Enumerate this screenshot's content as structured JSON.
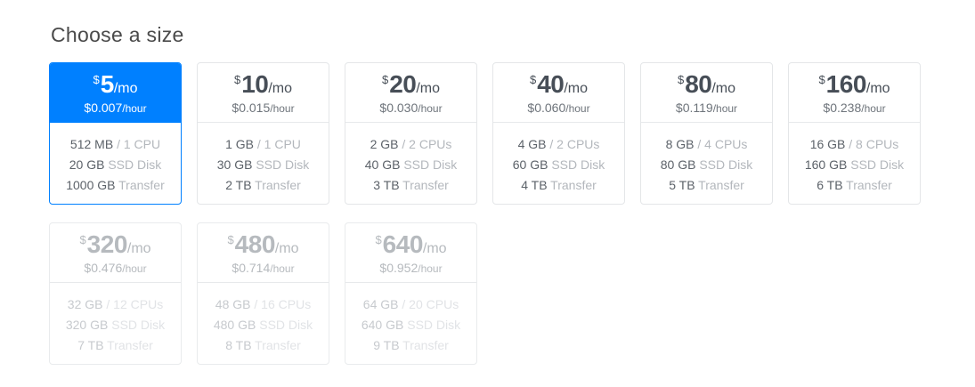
{
  "page": {
    "title": "Choose a size"
  },
  "colors": {
    "accent_blue": "#0080ff",
    "card_border": "#e4e6e8",
    "price_text": "#474e57",
    "spec_value_text": "#5c6269",
    "spec_label_text": "#b3b7bc",
    "disabled_text": "#b6babe"
  },
  "plans": [
    {
      "currency": "$",
      "amount": "5",
      "period": "/mo",
      "hourly": "$0.007",
      "hourly_period": "/hour",
      "state": "selected",
      "specs": [
        {
          "value": "512 MB",
          "label": "/ 1 CPU"
        },
        {
          "value": "20 GB",
          "label": "SSD Disk"
        },
        {
          "value": "1000 GB",
          "label": "Transfer"
        }
      ]
    },
    {
      "currency": "$",
      "amount": "10",
      "period": "/mo",
      "hourly": "$0.015",
      "hourly_period": "/hour",
      "state": "available",
      "specs": [
        {
          "value": "1 GB",
          "label": "/ 1 CPU"
        },
        {
          "value": "30 GB",
          "label": "SSD Disk"
        },
        {
          "value": "2 TB",
          "label": "Transfer"
        }
      ]
    },
    {
      "currency": "$",
      "amount": "20",
      "period": "/mo",
      "hourly": "$0.030",
      "hourly_period": "/hour",
      "state": "available",
      "specs": [
        {
          "value": "2 GB",
          "label": "/ 2 CPUs"
        },
        {
          "value": "40 GB",
          "label": "SSD Disk"
        },
        {
          "value": "3 TB",
          "label": "Transfer"
        }
      ]
    },
    {
      "currency": "$",
      "amount": "40",
      "period": "/mo",
      "hourly": "$0.060",
      "hourly_period": "/hour",
      "state": "available",
      "specs": [
        {
          "value": "4 GB",
          "label": "/ 2 CPUs"
        },
        {
          "value": "60 GB",
          "label": "SSD Disk"
        },
        {
          "value": "4 TB",
          "label": "Transfer"
        }
      ]
    },
    {
      "currency": "$",
      "amount": "80",
      "period": "/mo",
      "hourly": "$0.119",
      "hourly_period": "/hour",
      "state": "available",
      "specs": [
        {
          "value": "8 GB",
          "label": "/ 4 CPUs"
        },
        {
          "value": "80 GB",
          "label": "SSD Disk"
        },
        {
          "value": "5 TB",
          "label": "Transfer"
        }
      ]
    },
    {
      "currency": "$",
      "amount": "160",
      "period": "/mo",
      "hourly": "$0.238",
      "hourly_period": "/hour",
      "state": "available",
      "specs": [
        {
          "value": "16 GB",
          "label": "/ 8 CPUs"
        },
        {
          "value": "160 GB",
          "label": "SSD Disk"
        },
        {
          "value": "6 TB",
          "label": "Transfer"
        }
      ]
    },
    {
      "currency": "$",
      "amount": "320",
      "period": "/mo",
      "hourly": "$0.476",
      "hourly_period": "/hour",
      "state": "disabled",
      "specs": [
        {
          "value": "32 GB",
          "label": "/ 12 CPUs"
        },
        {
          "value": "320 GB",
          "label": "SSD Disk"
        },
        {
          "value": "7 TB",
          "label": "Transfer"
        }
      ]
    },
    {
      "currency": "$",
      "amount": "480",
      "period": "/mo",
      "hourly": "$0.714",
      "hourly_period": "/hour",
      "state": "disabled",
      "specs": [
        {
          "value": "48 GB",
          "label": "/ 16 CPUs"
        },
        {
          "value": "480 GB",
          "label": "SSD Disk"
        },
        {
          "value": "8 TB",
          "label": "Transfer"
        }
      ]
    },
    {
      "currency": "$",
      "amount": "640",
      "period": "/mo",
      "hourly": "$0.952",
      "hourly_period": "/hour",
      "state": "disabled",
      "specs": [
        {
          "value": "64 GB",
          "label": "/ 20 CPUs"
        },
        {
          "value": "640 GB",
          "label": "SSD Disk"
        },
        {
          "value": "9 TB",
          "label": "Transfer"
        }
      ]
    }
  ]
}
